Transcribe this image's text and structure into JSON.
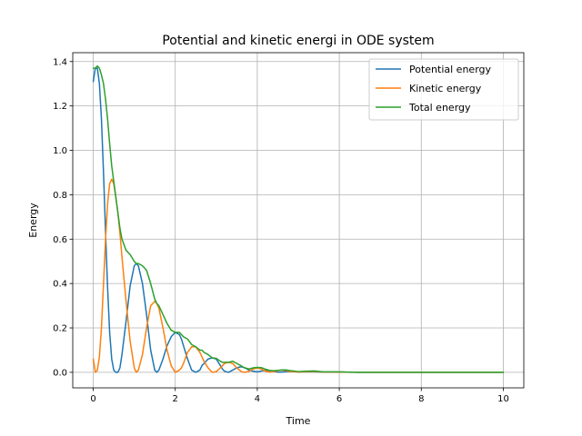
{
  "chart_data": {
    "type": "line",
    "title": "Potential and kinetic energi in ODE system",
    "xlabel": "Time",
    "ylabel": "Energy",
    "xlim": [
      -0.5,
      10.5
    ],
    "ylim": [
      -0.07,
      1.44
    ],
    "xticks": [
      0,
      2,
      4,
      6,
      8,
      10
    ],
    "yticks": [
      0.0,
      0.2,
      0.4,
      0.6,
      0.8,
      1.0,
      1.2,
      1.4
    ],
    "grid": true,
    "legend_position": "top-right",
    "series": [
      {
        "name": "Potential energy",
        "color": "#1f77b4",
        "x": [
          0.0,
          0.05,
          0.1,
          0.15,
          0.2,
          0.25,
          0.3,
          0.35,
          0.4,
          0.45,
          0.5,
          0.55,
          0.6,
          0.65,
          0.7,
          0.8,
          0.9,
          1.0,
          1.05,
          1.1,
          1.2,
          1.3,
          1.4,
          1.5,
          1.55,
          1.6,
          1.7,
          1.8,
          1.9,
          2.0,
          2.1,
          2.15,
          2.2,
          2.3,
          2.4,
          2.5,
          2.6,
          2.65,
          2.7,
          2.8,
          2.9,
          3.0,
          3.1,
          3.15,
          3.2,
          3.3,
          3.4,
          3.5,
          3.6,
          3.65,
          3.7,
          3.8,
          3.9,
          4.0,
          4.1,
          4.2,
          4.3,
          4.4,
          4.5,
          4.6,
          4.7,
          4.8,
          5.0,
          5.2,
          5.4,
          5.6,
          5.8,
          6.0,
          6.5,
          7.0,
          8.0,
          9.0,
          10.0
        ],
        "y": [
          1.31,
          1.37,
          1.37,
          1.3,
          1.14,
          0.9,
          0.63,
          0.38,
          0.18,
          0.06,
          0.01,
          0.0,
          0.0,
          0.02,
          0.08,
          0.23,
          0.39,
          0.48,
          0.49,
          0.48,
          0.4,
          0.26,
          0.1,
          0.01,
          0.0,
          0.01,
          0.06,
          0.12,
          0.16,
          0.18,
          0.17,
          0.15,
          0.12,
          0.06,
          0.01,
          0.0,
          0.01,
          0.03,
          0.04,
          0.06,
          0.065,
          0.06,
          0.03,
          0.015,
          0.005,
          0.0,
          0.01,
          0.02,
          0.025,
          0.023,
          0.02,
          0.01,
          0.005,
          0.002,
          0.006,
          0.009,
          0.008,
          0.004,
          0.001,
          0.001,
          0.003,
          0.004,
          0.002,
          0.002,
          0.002,
          0.001,
          0.001,
          0.001,
          0.0,
          0.0,
          0.0,
          0.0,
          0.0
        ]
      },
      {
        "name": "Kinetic energy",
        "color": "#ff7f0e",
        "x": [
          0.0,
          0.05,
          0.1,
          0.15,
          0.2,
          0.25,
          0.3,
          0.35,
          0.4,
          0.45,
          0.5,
          0.55,
          0.6,
          0.65,
          0.7,
          0.8,
          0.9,
          1.0,
          1.05,
          1.1,
          1.2,
          1.3,
          1.4,
          1.5,
          1.55,
          1.6,
          1.7,
          1.8,
          1.9,
          2.0,
          2.1,
          2.15,
          2.2,
          2.3,
          2.4,
          2.5,
          2.6,
          2.65,
          2.7,
          2.8,
          2.9,
          3.0,
          3.1,
          3.15,
          3.2,
          3.3,
          3.4,
          3.5,
          3.6,
          3.65,
          3.7,
          3.8,
          3.9,
          4.0,
          4.1,
          4.2,
          4.3,
          4.4,
          4.5,
          4.6,
          4.7,
          4.8,
          5.0,
          5.2,
          5.4,
          5.6,
          5.8,
          6.0,
          6.5,
          7.0,
          8.0,
          9.0,
          10.0
        ],
        "y": [
          0.06,
          0.0,
          0.01,
          0.07,
          0.2,
          0.4,
          0.6,
          0.76,
          0.85,
          0.87,
          0.85,
          0.79,
          0.72,
          0.63,
          0.52,
          0.32,
          0.14,
          0.02,
          0.0,
          0.01,
          0.08,
          0.2,
          0.3,
          0.32,
          0.31,
          0.29,
          0.2,
          0.1,
          0.03,
          0.0,
          0.01,
          0.02,
          0.04,
          0.09,
          0.115,
          0.115,
          0.09,
          0.07,
          0.05,
          0.02,
          0.0,
          0.003,
          0.02,
          0.03,
          0.04,
          0.045,
          0.04,
          0.02,
          0.005,
          0.001,
          0.0,
          0.005,
          0.015,
          0.02,
          0.015,
          0.005,
          0.001,
          0.003,
          0.008,
          0.01,
          0.008,
          0.004,
          0.001,
          0.003,
          0.004,
          0.001,
          0.001,
          0.001,
          0.0,
          0.0,
          0.0,
          0.0,
          0.0
        ]
      },
      {
        "name": "Total energy",
        "color": "#2ca02c",
        "x": [
          0.0,
          0.05,
          0.1,
          0.15,
          0.2,
          0.25,
          0.3,
          0.35,
          0.4,
          0.45,
          0.5,
          0.55,
          0.6,
          0.65,
          0.7,
          0.8,
          0.9,
          1.0,
          1.05,
          1.1,
          1.2,
          1.3,
          1.4,
          1.5,
          1.55,
          1.6,
          1.7,
          1.8,
          1.9,
          2.0,
          2.1,
          2.15,
          2.2,
          2.3,
          2.4,
          2.5,
          2.6,
          2.65,
          2.7,
          2.8,
          2.9,
          3.0,
          3.1,
          3.15,
          3.2,
          3.3,
          3.4,
          3.5,
          3.6,
          3.65,
          3.7,
          3.8,
          3.9,
          4.0,
          4.1,
          4.2,
          4.3,
          4.4,
          4.5,
          4.6,
          4.7,
          4.8,
          5.0,
          5.2,
          5.4,
          5.6,
          5.8,
          6.0,
          6.5,
          7.0,
          8.0,
          9.0,
          10.0
        ],
        "y": [
          1.37,
          1.37,
          1.38,
          1.37,
          1.34,
          1.3,
          1.23,
          1.14,
          1.03,
          0.93,
          0.86,
          0.79,
          0.72,
          0.65,
          0.6,
          0.55,
          0.53,
          0.5,
          0.49,
          0.49,
          0.48,
          0.46,
          0.4,
          0.33,
          0.31,
          0.3,
          0.26,
          0.22,
          0.19,
          0.18,
          0.18,
          0.17,
          0.16,
          0.15,
          0.125,
          0.115,
          0.1,
          0.1,
          0.09,
          0.08,
          0.065,
          0.063,
          0.05,
          0.045,
          0.045,
          0.045,
          0.05,
          0.04,
          0.03,
          0.024,
          0.02,
          0.015,
          0.02,
          0.022,
          0.021,
          0.014,
          0.009,
          0.007,
          0.009,
          0.011,
          0.011,
          0.008,
          0.003,
          0.005,
          0.006,
          0.002,
          0.002,
          0.002,
          0.0,
          0.0,
          0.0,
          0.0,
          0.0
        ]
      }
    ]
  }
}
